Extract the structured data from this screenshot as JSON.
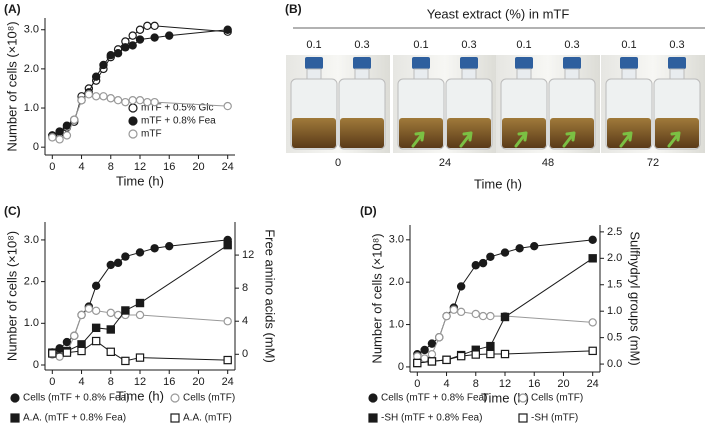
{
  "chart_data": [
    {
      "type": "line",
      "panel_label": "(A)",
      "xlabel": "Time (h)",
      "ylabel": "Number of cells (×10⁸)",
      "xlim": [
        -1,
        25
      ],
      "ylim": [
        -0.2,
        3.3
      ],
      "xticks": [
        0,
        4,
        8,
        12,
        16,
        20,
        24
      ],
      "yticks": [
        0,
        {
          "value": 1,
          "label": "1.0"
        },
        {
          "value": 2,
          "label": "2.0"
        },
        {
          "value": 3,
          "label": "3.0"
        }
      ],
      "legend": "lower right",
      "series": [
        {
          "name": "mTF + 0.5% Glc",
          "marker": "circle",
          "filled": false,
          "color": "#1a1a1a",
          "x": [
            0,
            1,
            2,
            3,
            4,
            5,
            6,
            7,
            8,
            9,
            10,
            11,
            12,
            13,
            14,
            24
          ],
          "values": [
            0.3,
            0.35,
            0.5,
            0.65,
            1.3,
            1.5,
            1.7,
            2.0,
            2.3,
            2.5,
            2.7,
            2.85,
            3.0,
            3.1,
            3.1,
            2.95
          ]
        },
        {
          "name": "mTF + 0.8% Fea",
          "marker": "circle",
          "filled": true,
          "color": "#1a1a1a",
          "x": [
            0,
            1,
            2,
            3,
            4,
            5,
            6,
            7,
            8,
            9,
            10,
            11,
            12,
            14,
            16,
            24
          ],
          "values": [
            0.3,
            0.4,
            0.55,
            0.7,
            1.2,
            1.4,
            1.8,
            2.1,
            2.35,
            2.4,
            2.55,
            2.6,
            2.75,
            2.8,
            2.85,
            3.0
          ]
        },
        {
          "name": "mTF",
          "marker": "circle",
          "filled": false,
          "color": "#999999",
          "x": [
            0,
            1,
            2,
            3,
            4,
            5,
            6,
            7,
            8,
            9,
            10,
            11,
            12,
            13,
            14,
            24
          ],
          "values": [
            0.25,
            0.2,
            0.3,
            0.7,
            1.2,
            1.35,
            1.3,
            1.3,
            1.25,
            1.2,
            1.15,
            1.2,
            1.2,
            1.15,
            1.15,
            1.05
          ]
        }
      ]
    },
    {
      "type": "line",
      "panel_label": "(C)",
      "xlabel": "Time (h)",
      "ylabel": "Number of cells (×10⁸)",
      "y2label": "Free amino acids (mM)",
      "xlim": [
        -1,
        25
      ],
      "ylim": [
        -0.12,
        3.43
      ],
      "y2lim": [
        -1.9,
        16
      ],
      "xticks": [
        0,
        4,
        8,
        12,
        16,
        20,
        24
      ],
      "yticks": [
        0,
        {
          "value": 1,
          "label": "1.0"
        },
        {
          "value": 2,
          "label": "2.0"
        },
        {
          "value": 3,
          "label": "3.0"
        }
      ],
      "y2ticks": [
        0,
        4,
        8,
        12
      ],
      "legend": "below",
      "series": [
        {
          "name": "Cells (mTF + 0.8% Fea)",
          "marker": "circle",
          "filled": true,
          "color": "#1a1a1a",
          "x": [
            0,
            1,
            2,
            3,
            4,
            5,
            6,
            8,
            9,
            10,
            12,
            14,
            16,
            24
          ],
          "values": [
            0.3,
            0.4,
            0.55,
            0.7,
            1.2,
            1.4,
            1.9,
            2.4,
            2.45,
            2.6,
            2.7,
            2.8,
            2.85,
            3.0
          ]
        },
        {
          "name": "Cells (mTF)",
          "marker": "circle",
          "filled": false,
          "color": "#999999",
          "x": [
            0,
            1,
            2,
            3,
            4,
            5,
            6,
            8,
            9,
            10,
            12,
            24
          ],
          "values": [
            0.25,
            0.2,
            0.3,
            0.7,
            1.2,
            1.35,
            1.3,
            1.25,
            1.2,
            1.2,
            1.2,
            1.05
          ]
        },
        {
          "name": "A.A. (mTF + 0.8% Fea)",
          "marker": "square",
          "filled": true,
          "color": "#1a1a1a",
          "axis": "y2",
          "x": [
            0,
            2,
            4,
            6,
            8,
            10,
            12,
            24
          ],
          "values": [
            0.2,
            0.4,
            1.2,
            3.2,
            3.0,
            5.3,
            6.2,
            13.2
          ]
        },
        {
          "name": "A.A. (mTF)",
          "marker": "square",
          "filled": false,
          "color": "#1a1a1a",
          "axis": "y2",
          "x": [
            0,
            2,
            4,
            6,
            8,
            10,
            12,
            24
          ],
          "values": [
            0.1,
            0.2,
            0.4,
            1.6,
            0.3,
            -0.8,
            -0.4,
            -0.7
          ]
        }
      ]
    },
    {
      "type": "line",
      "panel_label": "(D)",
      "xlabel": "Time (h)",
      "ylabel": "Number of cells (×10⁸)",
      "y2label": "Sulfhydryl groups (mM)",
      "xlim": [
        -1,
        25
      ],
      "ylim": [
        -0.12,
        3.35
      ],
      "y2lim": [
        -0.15,
        2.63
      ],
      "xticks": [
        0,
        4,
        8,
        12,
        16,
        20,
        24
      ],
      "yticks": [
        0,
        {
          "value": 1,
          "label": "1.0"
        },
        {
          "value": 2,
          "label": "2.0"
        },
        {
          "value": 3,
          "label": "3.0"
        }
      ],
      "y2ticks": [
        {
          "value": 0,
          "label": "0.0"
        },
        {
          "value": 0.5,
          "label": "0.5"
        },
        {
          "value": 1,
          "label": "1.0"
        },
        {
          "value": 1.5,
          "label": "1.5"
        },
        {
          "value": 2,
          "label": "2.0"
        },
        {
          "value": 2.5,
          "label": "2.5"
        }
      ],
      "legend": "below",
      "series": [
        {
          "name": "Cells (mTF + 0.8%  Fea)",
          "marker": "circle",
          "filled": true,
          "color": "#1a1a1a",
          "x": [
            0,
            1,
            2,
            3,
            4,
            5,
            6,
            8,
            9,
            10,
            12,
            14,
            16,
            24
          ],
          "values": [
            0.3,
            0.4,
            0.55,
            0.7,
            1.2,
            1.4,
            1.9,
            2.4,
            2.45,
            2.6,
            2.7,
            2.8,
            2.85,
            3.0
          ]
        },
        {
          "name": "Cells (mTF)",
          "marker": "circle",
          "filled": false,
          "color": "#999999",
          "x": [
            0,
            1,
            2,
            3,
            4,
            5,
            6,
            8,
            9,
            10,
            12,
            24
          ],
          "values": [
            0.25,
            0.2,
            0.3,
            0.7,
            1.2,
            1.35,
            1.3,
            1.25,
            1.2,
            1.2,
            1.2,
            1.05
          ]
        },
        {
          "name": "-SH (mTF + 0.8%  Fea)",
          "marker": "square",
          "filled": true,
          "color": "#1a1a1a",
          "axis": "y2",
          "x": [
            0,
            2,
            4,
            6,
            8,
            10,
            12,
            24
          ],
          "values": [
            0.02,
            0.05,
            0.08,
            0.17,
            0.27,
            0.34,
            0.89,
            2.0
          ]
        },
        {
          "name": "-SH (mTF)",
          "marker": "square",
          "filled": false,
          "color": "#1a1a1a",
          "axis": "y2",
          "x": [
            0,
            2,
            4,
            6,
            8,
            10,
            12,
            24
          ],
          "values": [
            0.02,
            0.05,
            0.08,
            0.15,
            0.18,
            0.19,
            0.19,
            0.25
          ]
        }
      ]
    }
  ],
  "photo_panel": {
    "panel_label": "(B)",
    "title": "Yeast extract (%) in mTF",
    "xlabel": "Time (h)",
    "groups": [
      {
        "time": "0",
        "concentrations": [
          "0.1",
          "0.3"
        ]
      },
      {
        "time": "24",
        "concentrations": [
          "0.1",
          "0.3"
        ]
      },
      {
        "time": "48",
        "concentrations": [
          "0.1",
          "0.3"
        ]
      },
      {
        "time": "72",
        "concentrations": [
          "0.1",
          "0.3"
        ]
      }
    ]
  }
}
